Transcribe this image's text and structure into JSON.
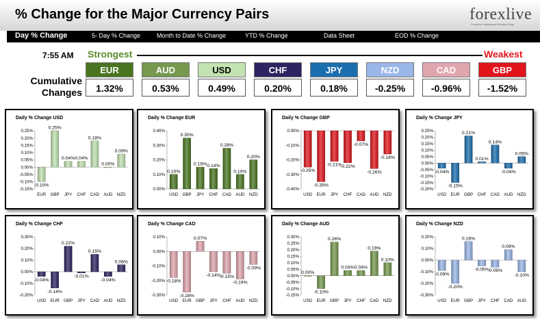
{
  "header": {
    "title": "% Change for the Major Currency Pairs",
    "logo": "forexlive",
    "logo_tagline": "Forexlive Institutional Window Edge"
  },
  "nav": {
    "items": [
      "Day % Change",
      "5- Day % Change",
      "Month to Date % Change",
      "YTD % Change",
      "Data Sheet",
      "EOD % Change"
    ]
  },
  "summary": {
    "time": "7:55 AM",
    "strongest_label": "Strongest",
    "weakest_label": "Weakest",
    "cumulative_label": "Cumulative Changes",
    "currencies": [
      {
        "code": "EUR",
        "value": "1.32%",
        "color": "#4a7520",
        "text": "#ffffff"
      },
      {
        "code": "AUD",
        "value": "0.53%",
        "color": "#76994f",
        "text": "#ffffff"
      },
      {
        "code": "USD",
        "value": "0.49%",
        "color": "#c2e3b1",
        "text": "#000000"
      },
      {
        "code": "CHF",
        "value": "0.20%",
        "color": "#2d2360",
        "text": "#ffffff"
      },
      {
        "code": "JPY",
        "value": "0.18%",
        "color": "#1c6faf",
        "text": "#ffffff"
      },
      {
        "code": "NZD",
        "value": "-0.25%",
        "color": "#9ab7e8",
        "text": "#ffffff"
      },
      {
        "code": "CAD",
        "value": "-0.96%",
        "color": "#e0a6ae",
        "text": "#ffffff"
      },
      {
        "code": "GBP",
        "value": "-1.52%",
        "color": "#e2141b",
        "text": "#ffffff"
      }
    ]
  },
  "chart_data": [
    {
      "type": "bar",
      "title": "Daily % Change USD",
      "categories": [
        "EUR",
        "GBP",
        "JPY",
        "CHF",
        "CAD",
        "AUD",
        "NZD"
      ],
      "values": [
        -0.1,
        0.25,
        0.04,
        0.04,
        0.18,
        0.0,
        0.09
      ],
      "labels": [
        "-0.10%",
        "0.25%",
        "0.04%",
        "0.04%",
        "0.18%",
        "0.00%",
        "0.09%"
      ],
      "ticks": [
        "0.25%",
        "0.20%",
        "0.15%",
        "0.10%",
        "0.05%",
        "0.00%",
        "-0.05%",
        "-0.10%",
        "-0.15%"
      ],
      "ylim": [
        -0.15,
        0.25
      ],
      "color": "#c2e3b1"
    },
    {
      "type": "bar",
      "title": "Daily % Change EUR",
      "categories": [
        "USD",
        "GBP",
        "JPY",
        "CHF",
        "CAD",
        "AUD",
        "NZD"
      ],
      "values": [
        0.1,
        0.35,
        0.15,
        0.14,
        0.28,
        0.1,
        0.2
      ],
      "labels": [
        "0.10%",
        "0.35%",
        "0.15%",
        "0.14%",
        "0.28%",
        "0.10%",
        "0.20%"
      ],
      "ticks": [
        "0.40%",
        "0.30%",
        "0.20%",
        "0.10%",
        "0.00%"
      ],
      "ylim": [
        0,
        0.4
      ],
      "color": "#4a7520"
    },
    {
      "type": "bar",
      "title": "Daily % Change GBP",
      "categories": [
        "USD",
        "EUR",
        "JPY",
        "CHF",
        "CAD",
        "AUD",
        "NZD"
      ],
      "values": [
        -0.25,
        -0.35,
        -0.21,
        -0.22,
        -0.07,
        -0.26,
        -0.16
      ],
      "labels": [
        "-0.25%",
        "-0.35%",
        "-0.21%",
        "-0.22%",
        "-0.07%",
        "-0.26%",
        "-0.16%"
      ],
      "ticks": [
        "0.00%",
        "-0.10%",
        "-0.20%",
        "-0.30%",
        "-0.40%"
      ],
      "ylim": [
        -0.4,
        0
      ],
      "color": "#e2141b"
    },
    {
      "type": "bar",
      "title": "Daily % Change JPY",
      "categories": [
        "USD",
        "EUR",
        "GBP",
        "CHF",
        "CAD",
        "AUD",
        "NZD"
      ],
      "values": [
        -0.04,
        -0.15,
        0.21,
        0.01,
        0.14,
        -0.04,
        0.05
      ],
      "labels": [
        "-0.04%",
        "-0.15%",
        "0.21%",
        "0.01%",
        "0.14%",
        "-0.04%",
        "0.05%"
      ],
      "ticks": [
        "0.25%",
        "0.20%",
        "0.15%",
        "0.10%",
        "0.05%",
        "0.00%",
        "-0.05%",
        "-0.10%",
        "-0.15%",
        "-0.20%"
      ],
      "ylim": [
        -0.2,
        0.25
      ],
      "color": "#1c6faf"
    },
    {
      "type": "bar",
      "title": "Daily % Change CHF",
      "categories": [
        "USD",
        "EUR",
        "GBP",
        "JPY",
        "CAD",
        "AUD",
        "NZD"
      ],
      "values": [
        -0.04,
        -0.14,
        0.22,
        -0.01,
        0.15,
        -0.04,
        0.06
      ],
      "labels": [
        "-0.04%",
        "-0.14%",
        "0.22%",
        "-0.01%",
        "0.15%",
        "-0.04%",
        "0.06%"
      ],
      "ticks": [
        "0.30%",
        "0.20%",
        "0.10%",
        "0.00%",
        "-0.10%",
        "-0.20%"
      ],
      "ylim": [
        -0.2,
        0.3
      ],
      "color": "#2d2360"
    },
    {
      "type": "bar",
      "title": "Daily % Change CAD",
      "categories": [
        "USD",
        "EUR",
        "GBP",
        "JPY",
        "CHF",
        "AUD",
        "NZD"
      ],
      "values": [
        -0.18,
        -0.28,
        0.07,
        -0.14,
        -0.15,
        -0.19,
        -0.09
      ],
      "labels": [
        "-0.18%",
        "-0.28%",
        "0.07%",
        "-0.14%",
        "-0.15%",
        "-0.19%",
        "-0.09%"
      ],
      "ticks": [
        "0.10%",
        "0.00%",
        "-0.10%",
        "-0.20%",
        "-0.30%"
      ],
      "ylim": [
        -0.3,
        0.1
      ],
      "color": "#e0a6ae"
    },
    {
      "type": "bar",
      "title": "Daily % Change AUD",
      "categories": [
        "USD",
        "EUR",
        "GBP",
        "JPY",
        "CHF",
        "CAD",
        "NZD"
      ],
      "values": [
        0.0,
        -0.1,
        0.26,
        0.04,
        0.04,
        0.19,
        0.1
      ],
      "labels": [
        "0.00%",
        "-0.10%",
        "0.26%",
        "0.04%",
        "0.04%",
        "0.19%",
        "0.10%"
      ],
      "ticks": [
        "0.30%",
        "0.25%",
        "0.20%",
        "0.15%",
        "0.10%",
        "0.05%",
        "0.00%",
        "-0.05%",
        "-0.10%",
        "-0.15%"
      ],
      "ylim": [
        -0.15,
        0.3
      ],
      "color": "#76994f"
    },
    {
      "type": "bar",
      "title": "Daily % Change NZD",
      "categories": [
        "USD",
        "EUR",
        "GBP",
        "JPY",
        "CHF",
        "CAD",
        "AUD"
      ],
      "values": [
        -0.09,
        -0.2,
        0.16,
        -0.05,
        -0.06,
        0.09,
        -0.1
      ],
      "labels": [
        "-0.09%",
        "-0.20%",
        "0.16%",
        "-0.05%",
        "-0.06%",
        "0.09%",
        "-0.10%"
      ],
      "ticks": [
        "0.20%",
        "0.10%",
        "0.00%",
        "-0.10%",
        "-0.20%",
        "-0.30%"
      ],
      "ylim": [
        -0.3,
        0.2
      ],
      "color": "#9ab7e8"
    }
  ]
}
